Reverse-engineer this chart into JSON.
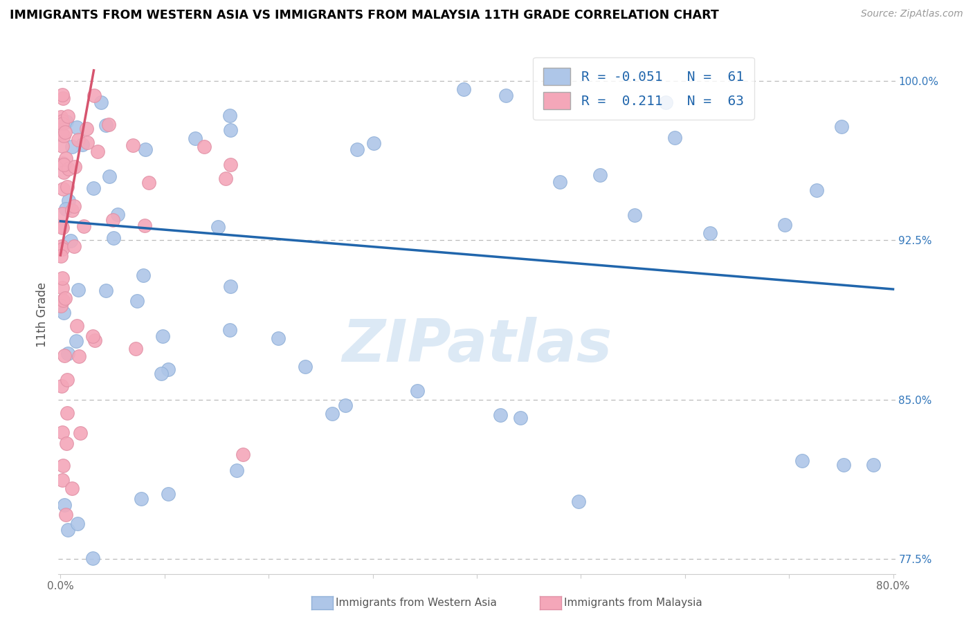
{
  "title": "IMMIGRANTS FROM WESTERN ASIA VS IMMIGRANTS FROM MALAYSIA 11TH GRADE CORRELATION CHART",
  "source_text": "Source: ZipAtlas.com",
  "ylabel": "11th Grade",
  "xlim": [
    -0.002,
    0.802
  ],
  "ylim": [
    0.768,
    1.012
  ],
  "R_blue": -0.051,
  "N_blue": 61,
  "R_pink": 0.211,
  "N_pink": 63,
  "blue_color": "#aec6e8",
  "blue_edge": "#90b0d8",
  "pink_color": "#f4a7b9",
  "pink_edge": "#e090a5",
  "blue_line_color": "#2166ac",
  "pink_line_color": "#d6546e",
  "watermark_color": "#dce9f5",
  "grid_color": "#bbbbbb",
  "grid_dashes": [
    5,
    4
  ],
  "ytick_vals": [
    0.775,
    0.85,
    0.925,
    1.0
  ],
  "ytick_labels": [
    "77.5%",
    "85.0%",
    "92.5%",
    "100.0%"
  ],
  "xtick_vals": [
    0.0,
    0.1,
    0.2,
    0.3,
    0.4,
    0.5,
    0.6,
    0.7,
    0.8
  ],
  "xtick_labels": [
    "0.0%",
    "",
    "",
    "",
    "",
    "",
    "",
    "",
    "80.0%"
  ],
  "blue_trend_x": [
    0.0,
    0.8
  ],
  "blue_trend_y": [
    0.934,
    0.902
  ],
  "pink_trend_x": [
    0.0,
    0.032
  ],
  "pink_trend_y": [
    0.918,
    1.005
  ],
  "legend_text_blue": "R = -0.051   N =  61",
  "legend_text_pink": "R =  0.211   N =  63",
  "bottom_label_blue": "Immigrants from Western Asia",
  "bottom_label_pink": "Immigrants from Malaysia"
}
